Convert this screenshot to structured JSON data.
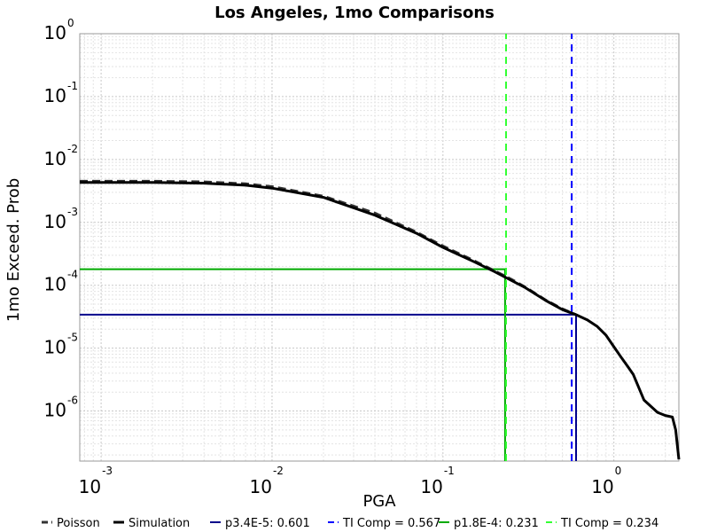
{
  "chart_data": {
    "type": "line",
    "title": "Los Angeles, 1mo Comparisons",
    "xlabel": "PGA",
    "ylabel": "1mo Exceed. Prob",
    "xscale": "log",
    "yscale": "log",
    "xlim": [
      0.00075,
      2.4
    ],
    "ylim": [
      1.6e-07,
      1.0
    ],
    "grid": true,
    "legend_placement": "bottom",
    "x_ticks": [
      {
        "base": "10",
        "exp": "-3",
        "value": 0.001
      },
      {
        "base": "10",
        "exp": "-2",
        "value": 0.01
      },
      {
        "base": "10",
        "exp": "-1",
        "value": 0.1
      },
      {
        "base": "10",
        "exp": "0",
        "value": 1
      }
    ],
    "y_ticks": [
      {
        "base": "10",
        "exp": "0",
        "value": 1
      },
      {
        "base": "10",
        "exp": "-1",
        "value": 0.1
      },
      {
        "base": "10",
        "exp": "-2",
        "value": 0.01
      },
      {
        "base": "10",
        "exp": "-3",
        "value": 0.001
      },
      {
        "base": "10",
        "exp": "-4",
        "value": 0.0001
      },
      {
        "base": "10",
        "exp": "-5",
        "value": 1e-05
      },
      {
        "base": "10",
        "exp": "-6",
        "value": 1e-06
      }
    ],
    "series": [
      {
        "name": "Poisson",
        "color": "#333333",
        "dash": "dashed",
        "x": [
          0.00075,
          0.001,
          0.002,
          0.004,
          0.007,
          0.01,
          0.02,
          0.04,
          0.07,
          0.1,
          0.15,
          0.2,
          0.25,
          0.3,
          0.4,
          0.5,
          0.6
        ],
        "y": [
          0.0045,
          0.0045,
          0.0045,
          0.0044,
          0.0041,
          0.0037,
          0.0026,
          0.0014,
          0.0007,
          0.00042,
          0.00025,
          0.00017,
          0.000125,
          9.5e-05,
          5.8e-05,
          4.2e-05,
          3.4e-05
        ]
      },
      {
        "name": "Simulation",
        "color": "#000000",
        "dash": "solid",
        "x": [
          0.00075,
          0.001,
          0.002,
          0.004,
          0.007,
          0.01,
          0.02,
          0.04,
          0.07,
          0.1,
          0.15,
          0.2,
          0.25,
          0.3,
          0.4,
          0.5,
          0.6,
          0.7,
          0.8,
          0.9,
          1.0,
          1.1,
          1.2,
          1.3,
          1.5,
          1.8,
          2.0,
          2.2,
          2.3,
          2.4
        ],
        "y": [
          0.0043,
          0.0043,
          0.0043,
          0.0042,
          0.0039,
          0.0035,
          0.0025,
          0.0013,
          0.00067,
          0.0004,
          0.00024,
          0.000165,
          0.00012,
          9.3e-05,
          5.7e-05,
          4.1e-05,
          3.4e-05,
          2.8e-05,
          2.2e-05,
          1.6e-05,
          1.05e-05,
          7.2e-06,
          5.2e-06,
          3.8e-06,
          1.5e-06,
          9.5e-07,
          8.5e-07,
          8e-07,
          5e-07,
          1.7e-07
        ]
      },
      {
        "name": "p3.4E-5: 0.601",
        "color": "#00008b",
        "dash": "solid",
        "shape": "crosshair",
        "x": [
          0.00075,
          0.601,
          0.601
        ],
        "y": [
          3.4e-05,
          3.4e-05,
          1.6e-07
        ]
      },
      {
        "name": "TI Comp = 0.567",
        "color": "#0000ff",
        "dash": "dashed",
        "shape": "vertical",
        "x": [
          0.567,
          0.567
        ],
        "y": [
          1.6e-07,
          1.0
        ]
      },
      {
        "name": "p1.8E-4: 0.231",
        "color": "#00aa00",
        "dash": "solid",
        "shape": "crosshair",
        "x": [
          0.00075,
          0.231,
          0.231
        ],
        "y": [
          0.00018,
          0.00018,
          1.6e-07
        ]
      },
      {
        "name": "TI Comp = 0.234",
        "color": "#33ff33",
        "dash": "dashed",
        "shape": "vertical",
        "x": [
          0.234,
          0.234
        ],
        "y": [
          1.6e-07,
          1.0
        ]
      }
    ]
  }
}
